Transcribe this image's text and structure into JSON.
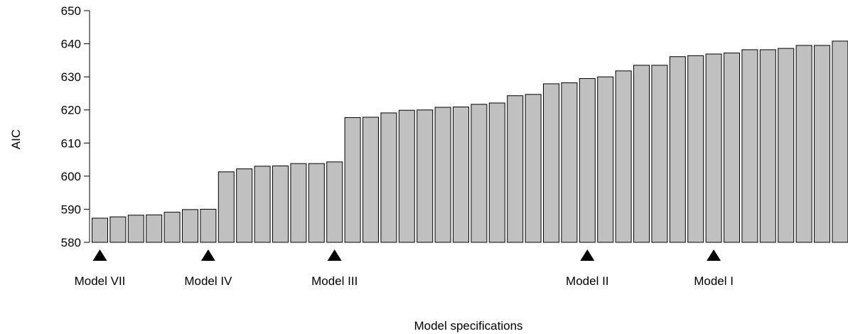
{
  "chart_data": {
    "type": "bar",
    "title": "",
    "xlabel": "Model specifications",
    "ylabel": "AIC",
    "ylim": [
      580,
      650
    ],
    "yticks": [
      580,
      590,
      600,
      610,
      620,
      630,
      640,
      650
    ],
    "grid": false,
    "bar_color": "#c0c0c0",
    "bar_edge_color": "#000000",
    "values": [
      587.3,
      587.7,
      588.2,
      588.3,
      589.1,
      589.9,
      590.0,
      601.3,
      602.2,
      603.0,
      603.1,
      603.8,
      603.8,
      604.3,
      617.7,
      617.8,
      619.1,
      619.9,
      620.0,
      620.8,
      620.9,
      621.7,
      622.1,
      624.3,
      624.7,
      627.9,
      628.2,
      629.5,
      630.0,
      631.8,
      633.5,
      633.5,
      636.1,
      636.4,
      636.9,
      637.2,
      638.2,
      638.2,
      638.6,
      639.5,
      639.5,
      640.8
    ],
    "markers": [
      {
        "index": 0,
        "label": "Model VII"
      },
      {
        "index": 6,
        "label": "Model IV"
      },
      {
        "index": 13,
        "label": "Model III"
      },
      {
        "index": 27,
        "label": "Model II"
      },
      {
        "index": 34,
        "label": "Model I"
      }
    ]
  }
}
